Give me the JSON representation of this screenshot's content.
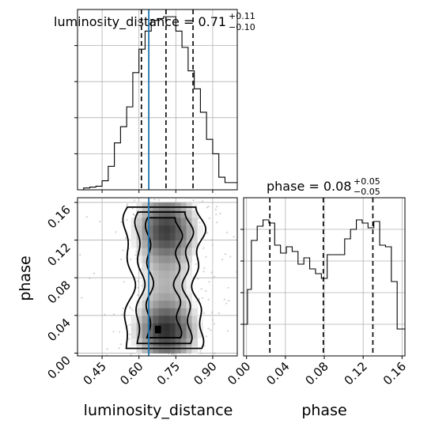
{
  "chart_data": [
    {
      "type": "bar",
      "panel": "top-left marginal histogram",
      "title_param": "luminosity_distance",
      "title_value": "0.71",
      "title_upper": "+0.11",
      "title_lower": "−0.10",
      "xlim": [
        0.35,
        1.0
      ],
      "ylim": [
        0,
        1.0
      ],
      "bin_edges": [
        0.35,
        0.375,
        0.4,
        0.425,
        0.45,
        0.475,
        0.5,
        0.525,
        0.55,
        0.575,
        0.6,
        0.625,
        0.65,
        0.675,
        0.7,
        0.725,
        0.75,
        0.775,
        0.8,
        0.825,
        0.85,
        0.875,
        0.9,
        0.925,
        0.95,
        0.975,
        1.0
      ],
      "values": [
        0.0,
        0.01,
        0.015,
        0.02,
        0.05,
        0.13,
        0.26,
        0.35,
        0.46,
        0.65,
        0.78,
        0.88,
        0.94,
        0.95,
        0.96,
        0.96,
        0.88,
        0.79,
        0.66,
        0.56,
        0.43,
        0.28,
        0.2,
        0.07,
        0.04,
        0.04
      ],
      "quantiles": [
        0.61,
        0.71,
        0.82
      ],
      "truth": 0.64
    },
    {
      "type": "bar",
      "panel": "bottom-right marginal histogram",
      "title_param": "phase",
      "title_value": "0.08",
      "title_upper": "+0.05",
      "title_lower": "−0.05",
      "xlim": [
        -0.003,
        0.163
      ],
      "ylim": [
        0,
        1.0
      ],
      "bin_edges": [
        -0.003,
        0.001,
        0.005,
        0.011,
        0.017,
        0.023,
        0.029,
        0.035,
        0.041,
        0.047,
        0.053,
        0.059,
        0.065,
        0.071,
        0.077,
        0.083,
        0.089,
        0.095,
        0.101,
        0.107,
        0.113,
        0.119,
        0.125,
        0.131,
        0.137,
        0.143,
        0.149,
        0.155,
        0.163
      ],
      "values": [
        0.2,
        0.42,
        0.73,
        0.82,
        0.86,
        0.84,
        0.7,
        0.65,
        0.69,
        0.66,
        0.58,
        0.62,
        0.55,
        0.52,
        0.49,
        0.64,
        0.64,
        0.64,
        0.74,
        0.8,
        0.86,
        0.84,
        0.81,
        0.85,
        0.7,
        0.69,
        0.47,
        0.17
      ],
      "quantiles": [
        0.024,
        0.079,
        0.13
      ]
    },
    {
      "type": "heatmap",
      "panel": "2D posterior density with contours",
      "xlabel": "luminosity_distance",
      "ylabel": "phase",
      "xlim": [
        0.35,
        1.0
      ],
      "ylim": [
        -0.003,
        0.165
      ],
      "xticks": [
        "0.45",
        "0.60",
        "0.75",
        "0.90"
      ],
      "xtick_values": [
        0.45,
        0.6,
        0.75,
        0.9
      ],
      "yticks": [
        "0.00",
        "0.04",
        "0.08",
        "0.12",
        "0.16"
      ],
      "ytick_values": [
        0.0,
        0.04,
        0.08,
        0.12,
        0.16
      ],
      "density_center_x": 0.71,
      "density_sigma_x": 0.1,
      "phase_modes": [
        0.025,
        0.13
      ],
      "truth_x": 0.64,
      "contour_levels": 3
    }
  ],
  "shared_axis": {
    "phase_xticks": [
      "0.00",
      "0.04",
      "0.08",
      "0.12",
      "0.16"
    ],
    "phase_xtick_values": [
      0.0,
      0.04,
      0.08,
      0.12,
      0.16
    ],
    "phase_xlabel": "phase"
  },
  "colors": {
    "truth": "#1f77b4",
    "hist": "#000000",
    "grid": "#b0b0b0",
    "density_dark": "#1a1a1a",
    "density_light": "#f2f2f2"
  }
}
